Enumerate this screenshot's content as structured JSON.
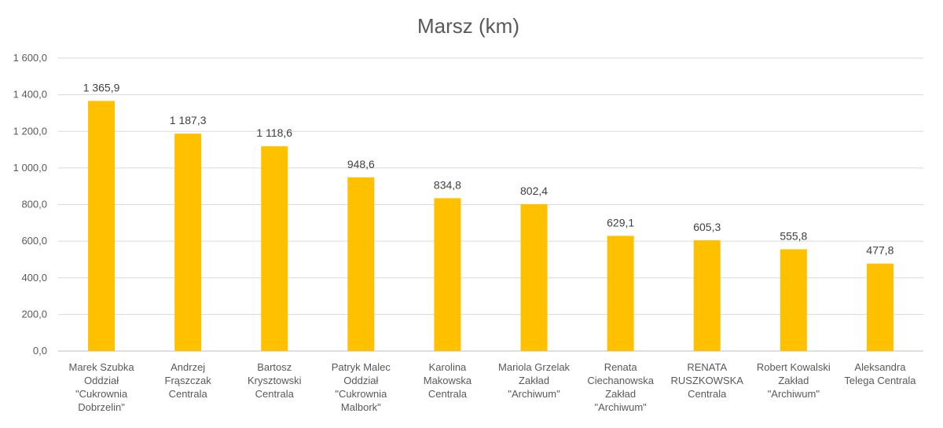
{
  "chart_data": {
    "type": "bar",
    "title": "Marsz (km)",
    "categories": [
      [
        "Marek Szubka",
        "Oddział",
        "\"Cukrownia",
        "Dobrzelin\""
      ],
      [
        "Andrzej",
        "Frąszczak",
        "Centrala"
      ],
      [
        "Bartosz",
        "Krysztowski",
        "Centrala"
      ],
      [
        "Patryk Malec",
        "Oddział",
        "\"Cukrownia",
        "Malbork\""
      ],
      [
        "Karolina",
        "Makowska",
        "Centrala"
      ],
      [
        "Mariola Grzelak",
        "Zakład",
        "\"Archiwum\""
      ],
      [
        "Renata",
        "Ciechanowska",
        "Zakład",
        "\"Archiwum\""
      ],
      [
        "RENATA",
        "RUSZKOWSKA",
        "Centrala"
      ],
      [
        "Robert Kowalski",
        "Zakład",
        "\"Archiwum\""
      ],
      [
        "Aleksandra",
        "Telega Centrala"
      ]
    ],
    "values": [
      1365.9,
      1187.3,
      1118.6,
      948.6,
      834.8,
      802.4,
      629.1,
      605.3,
      555.8,
      477.8
    ],
    "data_labels": [
      "1 365,9",
      "1 187,3",
      "1 118,6",
      "948,6",
      "834,8",
      "802,4",
      "629,1",
      "605,3",
      "555,8",
      "477,8"
    ],
    "yticks": [
      0,
      200,
      400,
      600,
      800,
      1000,
      1200,
      1400,
      1600
    ],
    "ytick_labels": [
      "0,0",
      "200,0",
      "400,0",
      "600,0",
      "800,0",
      "1 000,0",
      "1 200,0",
      "1 400,0",
      "1 600,0"
    ],
    "ylim": [
      0,
      1600
    ],
    "grid": true,
    "bar_color": "#ffc000",
    "xlabel": "",
    "ylabel": ""
  }
}
